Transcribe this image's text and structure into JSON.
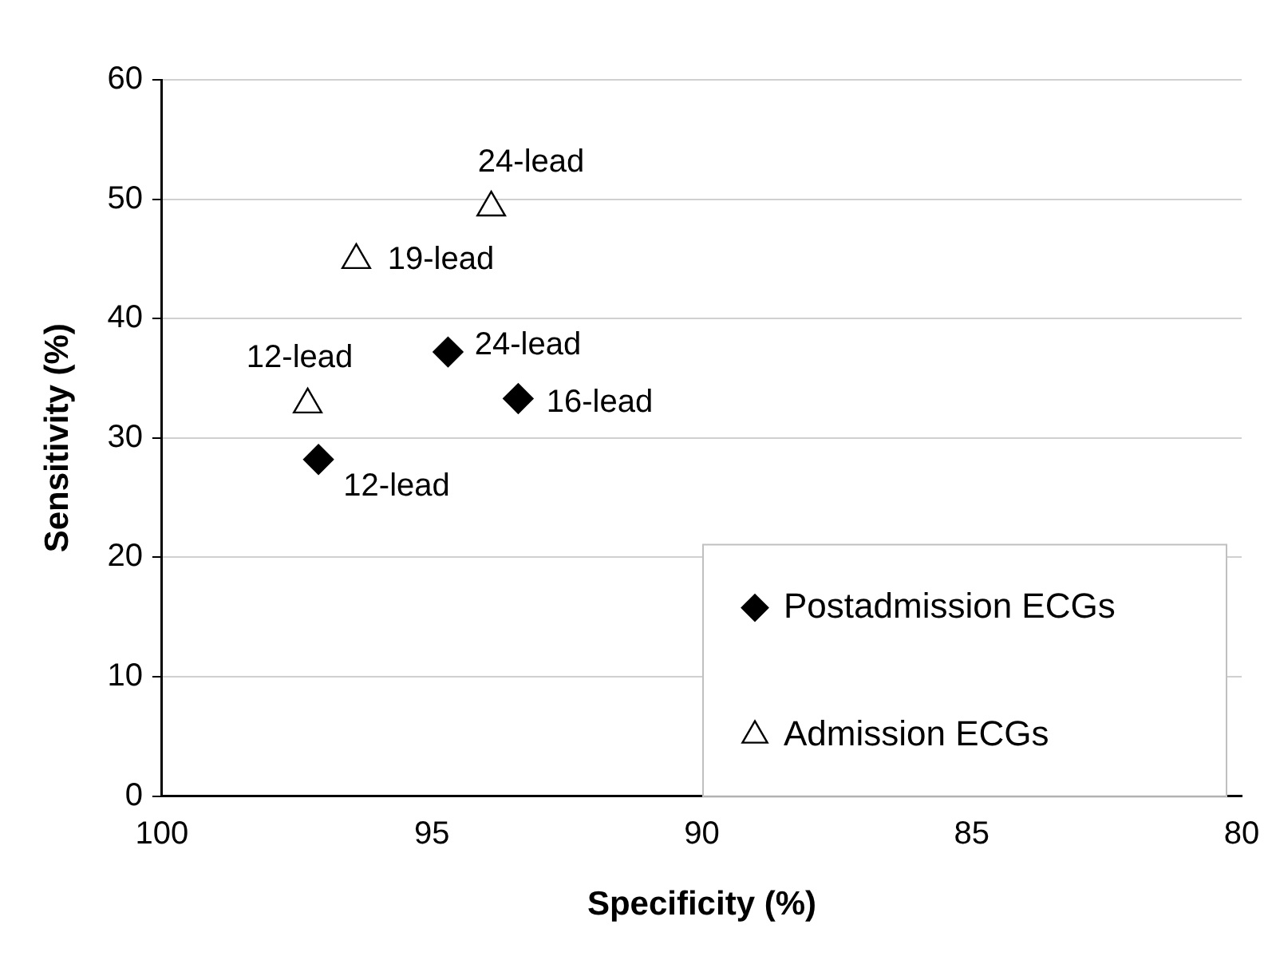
{
  "chart_data": {
    "type": "scatter",
    "xlabel": "Specificity (%)",
    "ylabel": "Sensitivity (%)",
    "xlim": [
      100,
      80
    ],
    "xticks": [
      100,
      95,
      90,
      85,
      80
    ],
    "ylim": [
      0,
      60
    ],
    "yticks": [
      0,
      10,
      20,
      30,
      40,
      50,
      60
    ],
    "grid": "y",
    "legend": "bottom right",
    "series": [
      {
        "name": "Postadmission ECGs",
        "color": "#000000",
        "marker": "diamond",
        "x": [
          97.1,
          94.7,
          93.4
        ],
        "values": [
          28.2,
          37.2,
          33.3
        ]
      },
      {
        "name": "Admission ECGs",
        "color": "#ffffff",
        "marker": "triangle",
        "x": [
          97.3,
          96.4,
          93.9
        ],
        "values": [
          32.8,
          44.9,
          49.3
        ]
      }
    ],
    "annotations": [
      {
        "text": "24-lead",
        "x": 93.9,
        "y": 49.3
      },
      {
        "text": "19-lead",
        "x": 96.4,
        "y": 44.9
      },
      {
        "text": "12-lead",
        "x": 97.3,
        "y": 32.8
      },
      {
        "text": "24-lead",
        "x": 94.7,
        "y": 37.2
      },
      {
        "text": "16-lead",
        "x": 93.4,
        "y": 33.3
      },
      {
        "text": "12-lead",
        "x": 97.1,
        "y": 28.2
      }
    ]
  }
}
